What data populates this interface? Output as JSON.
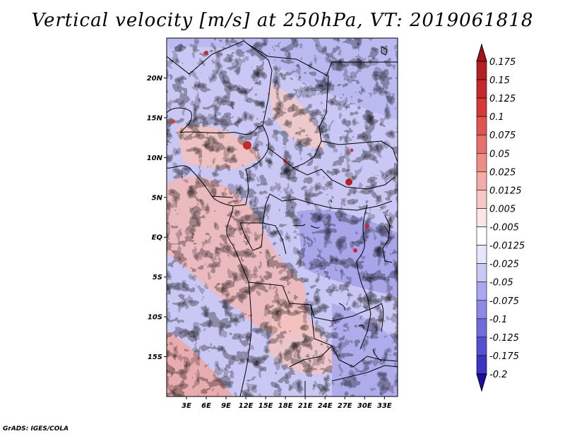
{
  "title": "Vertical velocity [m/s] at 250hPa, VT: 2019061818",
  "credit": "GrADS: IGES/COLA",
  "map": {
    "lon_range": [
      0,
      35
    ],
    "lat_range": [
      -20,
      25
    ],
    "lat_ticks": [
      {
        "value": 20,
        "label": "20N"
      },
      {
        "value": 15,
        "label": "15N"
      },
      {
        "value": 10,
        "label": "10N"
      },
      {
        "value": 5,
        "label": "5N"
      },
      {
        "value": 0,
        "label": "EQ"
      },
      {
        "value": -5,
        "label": "5S"
      },
      {
        "value": -10,
        "label": "10S"
      },
      {
        "value": -15,
        "label": "15S"
      }
    ],
    "lon_ticks": [
      {
        "value": 3,
        "label": "3E"
      },
      {
        "value": 6,
        "label": "6E"
      },
      {
        "value": 9,
        "label": "9E"
      },
      {
        "value": 12,
        "label": "12E"
      },
      {
        "value": 15,
        "label": "15E"
      },
      {
        "value": 18,
        "label": "18E"
      },
      {
        "value": 21,
        "label": "21E"
      },
      {
        "value": 24,
        "label": "24E"
      },
      {
        "value": 27,
        "label": "27E"
      },
      {
        "value": 30,
        "label": "30E"
      },
      {
        "value": 33,
        "label": "33E"
      }
    ]
  },
  "colorbar": {
    "levels": [
      {
        "label": "0.175",
        "color": "#b21f24"
      },
      {
        "label": "0.15",
        "color": "#c42a2c"
      },
      {
        "label": "0.125",
        "color": "#d53a38"
      },
      {
        "label": "0.1",
        "color": "#e05550"
      },
      {
        "label": "0.075",
        "color": "#e7706a"
      },
      {
        "label": "0.05",
        "color": "#ee8c86"
      },
      {
        "label": "0.025",
        "color": "#f4aca6"
      },
      {
        "label": "0.0125",
        "color": "#f8c8c4"
      },
      {
        "label": "0.005",
        "color": "#fce6e4"
      },
      {
        "label": "-0.005",
        "color": "#ffffff"
      },
      {
        "label": "-0.0125",
        "color": "#e6e6fc"
      },
      {
        "label": "-0.025",
        "color": "#c8c8f6"
      },
      {
        "label": "-0.05",
        "color": "#aaa8f0"
      },
      {
        "label": "-0.075",
        "color": "#8c8ae6"
      },
      {
        "label": "-0.1",
        "color": "#706cdc"
      },
      {
        "label": "-0.125",
        "color": "#5550d0"
      },
      {
        "label": "-0.175",
        "color": "#3c34c4"
      },
      {
        "label": "-0.2",
        "color": "#2a20b4"
      }
    ],
    "top_color": "#a01418",
    "bottom_color": "#1c0e9e"
  }
}
